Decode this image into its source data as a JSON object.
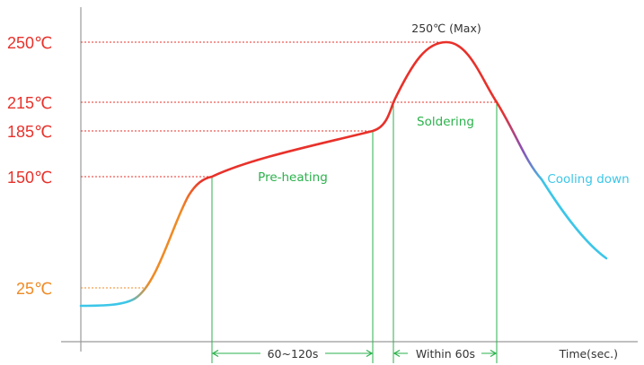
{
  "chart_data": {
    "type": "line",
    "title": "",
    "xlabel": "Time(sec.)",
    "ylabel": "",
    "yticks": [
      {
        "value": 250,
        "label": "250℃",
        "color": "#e8312a"
      },
      {
        "value": 215,
        "label": "215℃",
        "color": "#e8312a"
      },
      {
        "value": 185,
        "label": "185℃",
        "color": "#e8312a"
      },
      {
        "value": 150,
        "label": "150℃",
        "color": "#e8312a"
      },
      {
        "value": 25,
        "label": "25℃",
        "color": "#f08a24"
      }
    ],
    "peak_label": "250℃ (Max)",
    "zones": [
      {
        "name": "Pre-heating",
        "span": "60~120s"
      },
      {
        "name": "Soldering",
        "span": "Within 60s"
      },
      {
        "name": "Cooling down",
        "span": ""
      }
    ],
    "colors": {
      "hot": "#e8312a",
      "warm": "#f08a24",
      "cool": "#3cc6e8",
      "zone": "#2bb24c",
      "guide_red": "#e8312a",
      "guide_orange": "#f08a24",
      "axis": "#9a9a9a"
    }
  }
}
